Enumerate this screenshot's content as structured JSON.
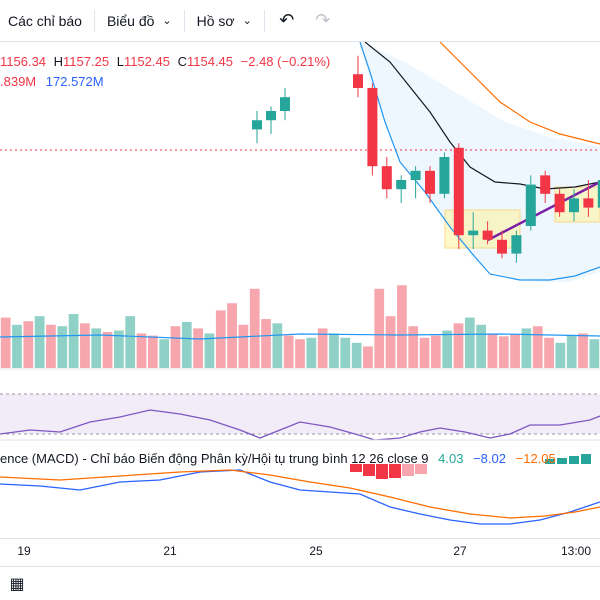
{
  "toolbar": {
    "indicators_label": "Các chỉ báo",
    "chart_label": "Biểu đồ",
    "profile_label": "Hồ sơ",
    "undo_icon": "undo-icon",
    "redo_icon": "redo-icon"
  },
  "legend": {
    "open_value": "1156.34",
    "high_key": "H",
    "high_value": "1157.25",
    "low_key": "L",
    "low_value": "1152.45",
    "close_key": "C",
    "close_value": "1154.45",
    "change": "−2.48 (−0.21%)",
    "volume_value": ".839M",
    "volume_ma_value": "172.572M"
  },
  "macd_legend": {
    "title": "ence (MACD) - Chỉ báo Biến động Phân kỳ/Hội tụ trung bình 12 26 close 9",
    "histogram": "4.03",
    "macd": "−8.02",
    "signal": "−12.05"
  },
  "time_axis": {
    "ticks": [
      "19",
      "21",
      "25",
      "27",
      "13:00"
    ]
  },
  "colors": {
    "up": "#26a69a",
    "down": "#f23645",
    "band": "#2196f3",
    "ema_slow": "#ff6d00",
    "ema_fast": "#131722",
    "trendline": "#7b1fa2",
    "highlight": "#fff59d"
  },
  "chart_data": {
    "type": "candlestick",
    "candles": [
      {
        "o": 1156,
        "h": 1160,
        "l": 1153,
        "c": 1158
      },
      {
        "o": 1158,
        "h": 1161,
        "l": 1155,
        "c": 1160
      },
      {
        "o": 1160,
        "h": 1165,
        "l": 1158,
        "c": 1163
      },
      {
        "o": 1168,
        "h": 1172,
        "l": 1163,
        "c": 1165
      },
      {
        "o": 1165,
        "h": 1166,
        "l": 1146,
        "c": 1148
      },
      {
        "o": 1148,
        "h": 1150,
        "l": 1141,
        "c": 1143
      },
      {
        "o": 1143,
        "h": 1146,
        "l": 1140,
        "c": 1145
      },
      {
        "o": 1145,
        "h": 1148,
        "l": 1141,
        "c": 1147
      },
      {
        "o": 1147,
        "h": 1148,
        "l": 1140,
        "c": 1142
      },
      {
        "o": 1142,
        "h": 1151,
        "l": 1141,
        "c": 1150
      },
      {
        "o": 1152,
        "h": 1153,
        "l": 1130,
        "c": 1133
      },
      {
        "o": 1133,
        "h": 1138,
        "l": 1130,
        "c": 1134
      },
      {
        "o": 1134,
        "h": 1136,
        "l": 1131,
        "c": 1132
      },
      {
        "o": 1132,
        "h": 1134,
        "l": 1128,
        "c": 1129
      },
      {
        "o": 1129,
        "h": 1134,
        "l": 1127,
        "c": 1133
      },
      {
        "o": 1135,
        "h": 1146,
        "l": 1134,
        "c": 1144
      },
      {
        "o": 1146,
        "h": 1147,
        "l": 1140,
        "c": 1142
      },
      {
        "o": 1142,
        "h": 1143,
        "l": 1137,
        "c": 1138
      },
      {
        "o": 1138,
        "h": 1143,
        "l": 1136,
        "c": 1141
      },
      {
        "o": 1141,
        "h": 1145,
        "l": 1137,
        "c": 1139
      },
      {
        "o": 1139,
        "h": 1146,
        "l": 1138,
        "c": 1145
      }
    ],
    "volume": [
      {
        "v": 70,
        "up": false
      },
      {
        "v": 60,
        "up": true
      },
      {
        "v": 65,
        "up": false
      },
      {
        "v": 72,
        "up": true
      },
      {
        "v": 60,
        "up": false
      },
      {
        "v": 58,
        "up": true
      },
      {
        "v": 75,
        "up": true
      },
      {
        "v": 62,
        "up": false
      },
      {
        "v": 55,
        "up": true
      },
      {
        "v": 50,
        "up": false
      },
      {
        "v": 52,
        "up": true
      },
      {
        "v": 72,
        "up": true
      },
      {
        "v": 48,
        "up": false
      },
      {
        "v": 45,
        "up": false
      },
      {
        "v": 40,
        "up": true
      },
      {
        "v": 58,
        "up": false
      },
      {
        "v": 64,
        "up": true
      },
      {
        "v": 55,
        "up": false
      },
      {
        "v": 48,
        "up": true
      },
      {
        "v": 80,
        "up": false
      },
      {
        "v": 90,
        "up": false
      },
      {
        "v": 60,
        "up": false
      },
      {
        "v": 110,
        "up": false
      },
      {
        "v": 68,
        "up": false
      },
      {
        "v": 62,
        "up": true
      },
      {
        "v": 45,
        "up": false
      },
      {
        "v": 40,
        "up": false
      },
      {
        "v": 42,
        "up": true
      },
      {
        "v": 55,
        "up": false
      },
      {
        "v": 48,
        "up": true
      },
      {
        "v": 42,
        "up": true
      },
      {
        "v": 35,
        "up": true
      },
      {
        "v": 30,
        "up": false
      },
      {
        "v": 110,
        "up": false
      },
      {
        "v": 72,
        "up": false
      },
      {
        "v": 115,
        "up": false
      },
      {
        "v": 58,
        "up": false
      },
      {
        "v": 42,
        "up": false
      },
      {
        "v": 45,
        "up": false
      },
      {
        "v": 52,
        "up": true
      },
      {
        "v": 62,
        "up": false
      },
      {
        "v": 70,
        "up": true
      },
      {
        "v": 60,
        "up": true
      },
      {
        "v": 48,
        "up": false
      },
      {
        "v": 44,
        "up": false
      },
      {
        "v": 46,
        "up": false
      },
      {
        "v": 55,
        "up": true
      },
      {
        "v": 58,
        "up": false
      },
      {
        "v": 42,
        "up": false
      },
      {
        "v": 35,
        "up": true
      },
      {
        "v": 45,
        "up": true
      },
      {
        "v": 48,
        "up": false
      },
      {
        "v": 40,
        "up": true
      }
    ]
  }
}
